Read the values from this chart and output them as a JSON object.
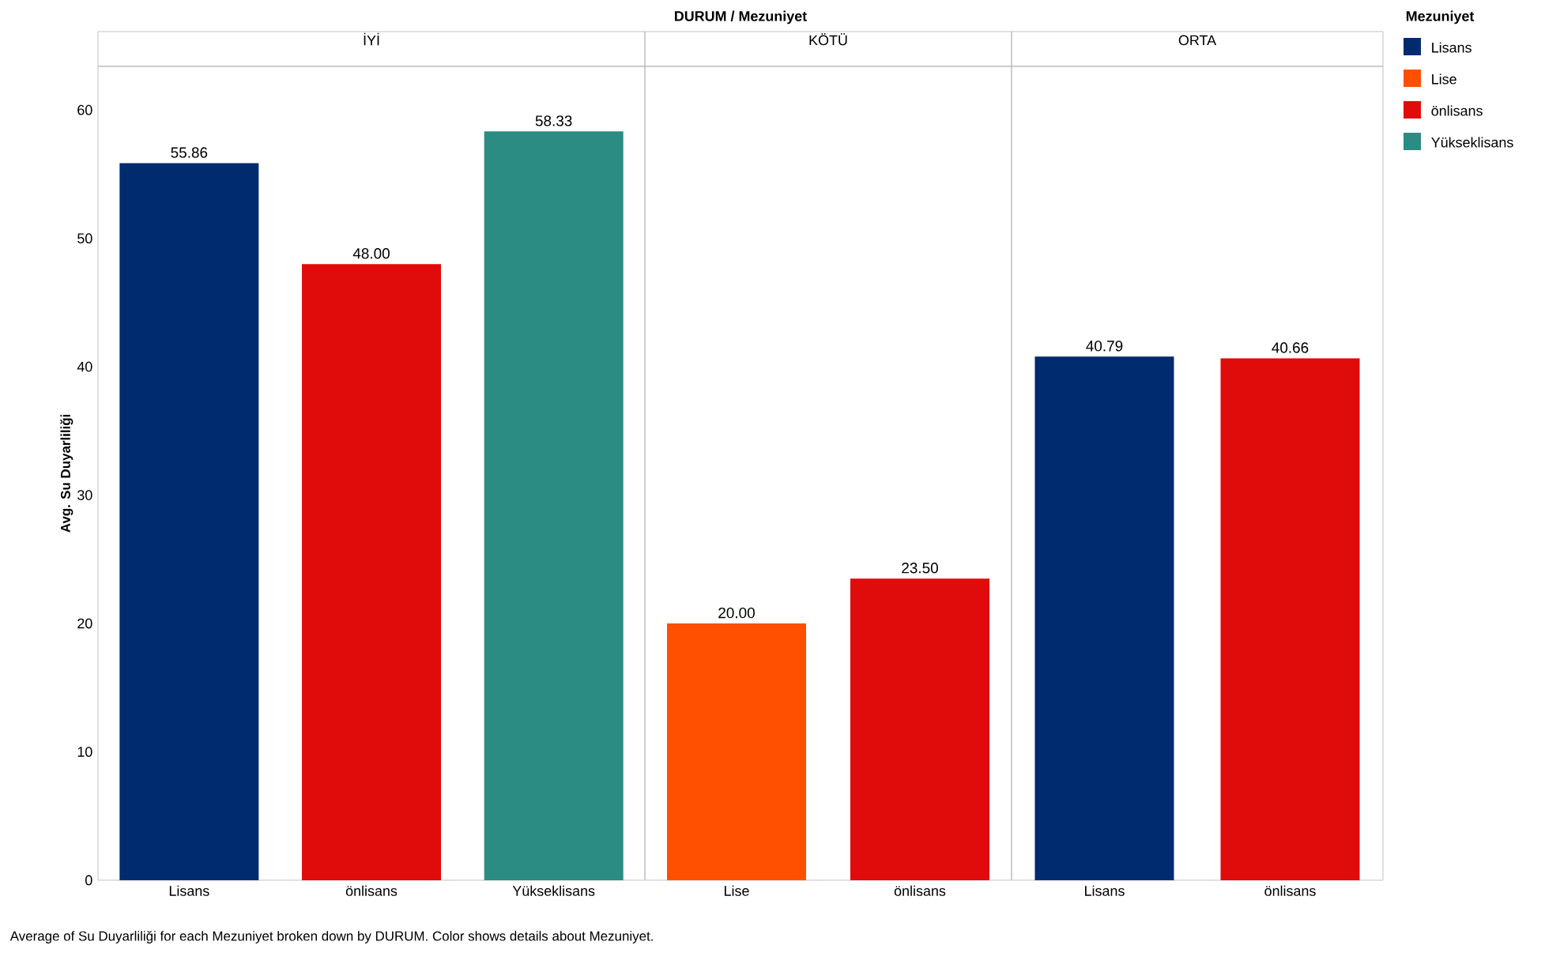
{
  "chart_data": [
    {
      "type": "bar",
      "title": "İYİ",
      "ylabel": "Avg. Su Duyarliliği",
      "categories": [
        "Lisans",
        "önlisans",
        "Yükseklisans"
      ],
      "ylim": [
        0,
        63.4
      ],
      "yticks": [
        0,
        10,
        20,
        30,
        40,
        50,
        60
      ],
      "series": [
        {
          "color": "#002b6e",
          "values": [
            55.86,
            null,
            null
          ],
          "value_labels": [
            "55.86",
            null,
            null
          ]
        },
        {
          "color": "#e00b0b",
          "values": [
            null,
            48.0,
            null
          ],
          "value_labels": [
            null,
            "48.00",
            null
          ]
        },
        {
          "color": "#2a8c82",
          "values": [
            null,
            null,
            58.33
          ],
          "value_labels": [
            null,
            null,
            "58.33"
          ]
        }
      ],
      "annotations": [
        "Average of Su Duyarliliği for each Mezuniyet broken down by DURUM.  Color shows details about Mezuniyet."
      ]
    },
    {
      "type": "bar",
      "title": "KÖTÜ",
      "xlabel": "DURUM / Mezuniyet",
      "categories": [
        "Lise",
        "önlisans"
      ],
      "ylim": [
        0,
        63.4
      ],
      "tick_labels": "x",
      "series": [
        {
          "color": "#ff4f00",
          "values": [
            20.0,
            null
          ],
          "value_labels": [
            "20.00",
            null
          ]
        },
        {
          "color": "#e00b0b",
          "values": [
            null,
            23.5
          ],
          "value_labels": [
            null,
            "23.50"
          ]
        }
      ]
    },
    {
      "type": "bar",
      "title": "ORTA",
      "categories": [
        "Lisans",
        "önlisans"
      ],
      "ylim": [
        0,
        63.4
      ],
      "tick_labels": "x",
      "legend": "right",
      "legend_title": "Mezuniyet",
      "series": [
        {
          "name": "Lisans",
          "color": "#002b6e",
          "values": [
            40.79,
            null
          ],
          "value_labels": [
            "40.79",
            null
          ]
        },
        {
          "name": "Lise",
          "color": "#ff4f00",
          "values": [
            null,
            null
          ],
          "value_labels": [
            null,
            null
          ]
        },
        {
          "name": "önlisans",
          "color": "#e00b0b",
          "values": [
            null,
            40.66
          ],
          "value_labels": [
            null,
            "40.66"
          ]
        },
        {
          "name": "Yükseklisans",
          "color": "#2a8c82",
          "values": [
            null,
            null
          ],
          "value_labels": [
            null,
            null
          ]
        }
      ]
    }
  ]
}
